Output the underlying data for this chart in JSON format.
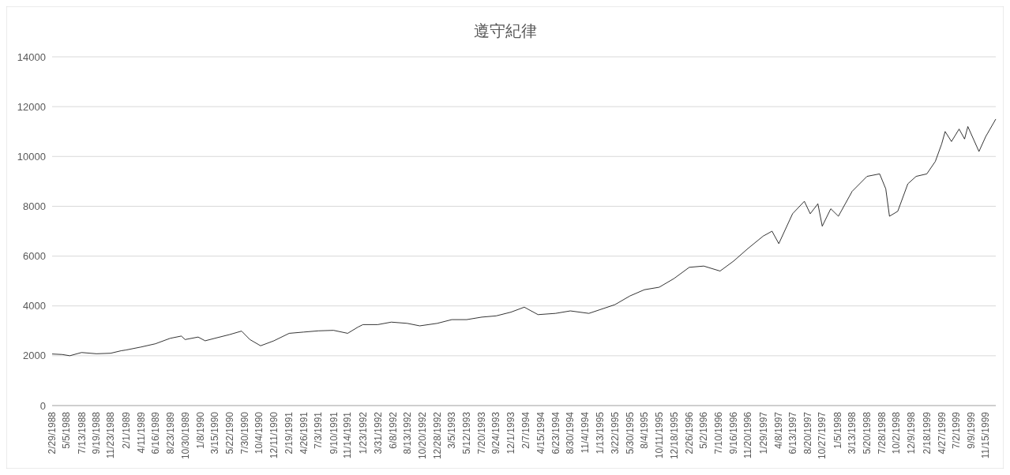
{
  "chart_data": {
    "type": "line",
    "title": "遵守紀律",
    "x": [
      "1988-02-29",
      "1988-04-15",
      "1988-05-20",
      "1988-07-13",
      "1988-09-19",
      "1988-11-23",
      "1989-01-10",
      "1989-02-01",
      "1989-04-11",
      "1989-06-16",
      "1989-08-23",
      "1989-10-13",
      "1989-10-30",
      "1989-12-29",
      "1990-01-30",
      "1990-03-15",
      "1990-05-22",
      "1990-07-16",
      "1990-08-23",
      "1990-10-11",
      "1990-12-11",
      "1991-02-19",
      "1991-04-26",
      "1991-07-03",
      "1991-09-10",
      "1991-11-14",
      "1991-12-31",
      "1992-01-23",
      "1992-03-31",
      "1992-06-01",
      "1992-08-13",
      "1992-10-09",
      "1992-12-28",
      "1993-03-05",
      "1993-05-12",
      "1993-07-20",
      "1993-09-24",
      "1993-12-01",
      "1994-01-31",
      "1994-04-04",
      "1994-06-23",
      "1994-08-30",
      "1994-11-23",
      "1995-01-13",
      "1995-03-22",
      "1995-05-30",
      "1995-08-04",
      "1995-10-11",
      "1995-12-18",
      "1996-02-26",
      "1996-05-02",
      "1996-07-16",
      "1996-09-16",
      "1996-11-20",
      "1997-01-29",
      "1997-03-11",
      "1997-04-11",
      "1997-06-13",
      "1997-08-06",
      "1997-09-02",
      "1997-10-07",
      "1997-10-27",
      "1997-12-05",
      "1998-01-09",
      "1998-03-13",
      "1998-05-20",
      "1998-07-17",
      "1998-08-14",
      "1998-08-31",
      "1998-10-08",
      "1998-11-23",
      "1998-12-31",
      "1999-02-18",
      "1999-03-29",
      "1999-04-27",
      "1999-05-13",
      "1999-06-11",
      "1999-07-16",
      "1999-08-10",
      "1999-08-25",
      "1999-10-15",
      "1999-11-15",
      "1999-12-31"
    ],
    "series": [
      {
        "color": "#000000",
        "values": [
          2070,
          2050,
          2000,
          2130,
          2080,
          2100,
          2200,
          2230,
          2350,
          2480,
          2700,
          2790,
          2650,
          2750,
          2600,
          2700,
          2850,
          2990,
          2650,
          2400,
          2600,
          2900,
          2950,
          3000,
          3020,
          2900,
          3150,
          3250,
          3250,
          3350,
          3300,
          3200,
          3300,
          3450,
          3450,
          3550,
          3600,
          3750,
          3950,
          3650,
          3700,
          3800,
          3700,
          3850,
          4050,
          4400,
          4650,
          4750,
          5100,
          5550,
          5600,
          5400,
          5800,
          6300,
          6800,
          7000,
          6500,
          7700,
          8200,
          7700,
          8100,
          7200,
          7900,
          7600,
          8600,
          9200,
          9300,
          8700,
          7600,
          7800,
          8900,
          9200,
          9300,
          9800,
          10500,
          11000,
          10600,
          11100,
          10700,
          11200,
          10200,
          10800,
          11500
        ]
      }
    ],
    "ylim": [
      0,
      14000
    ],
    "yticks": [
      0,
      2000,
      4000,
      6000,
      8000,
      10000,
      12000,
      14000
    ],
    "grid": "y",
    "xlim": [
      "1988-02-29",
      "1999-12-31"
    ],
    "xticks": [
      {
        "value": "1988-02-29",
        "label": "2/29/1988"
      },
      {
        "value": "1988-05-05",
        "label": "5/5/1988"
      },
      {
        "value": "1988-07-13",
        "label": "7/13/1988"
      },
      {
        "value": "1988-09-19",
        "label": "9/19/1988"
      },
      {
        "value": "1988-11-23",
        "label": "11/23/1988"
      },
      {
        "value": "1989-02-01",
        "label": "2/1/1989"
      },
      {
        "value": "1989-04-11",
        "label": "4/11/1989"
      },
      {
        "value": "1989-06-16",
        "label": "6/16/1989"
      },
      {
        "value": "1989-08-23",
        "label": "8/23/1989"
      },
      {
        "value": "1989-10-30",
        "label": "10/30/1989"
      },
      {
        "value": "1990-01-08",
        "label": "1/8/1990"
      },
      {
        "value": "1990-03-15",
        "label": "3/15/1990"
      },
      {
        "value": "1990-05-22",
        "label": "5/22/1990"
      },
      {
        "value": "1990-07-30",
        "label": "7/30/1990"
      },
      {
        "value": "1990-10-04",
        "label": "10/4/1990"
      },
      {
        "value": "1990-12-11",
        "label": "12/11/1990"
      },
      {
        "value": "1991-02-19",
        "label": "2/19/1991"
      },
      {
        "value": "1991-04-26",
        "label": "4/26/1991"
      },
      {
        "value": "1991-07-03",
        "label": "7/3/1991"
      },
      {
        "value": "1991-09-10",
        "label": "9/10/1991"
      },
      {
        "value": "1991-11-14",
        "label": "11/14/1991"
      },
      {
        "value": "1992-01-23",
        "label": "1/23/1992"
      },
      {
        "value": "1992-03-31",
        "label": "3/31/1992"
      },
      {
        "value": "1992-06-08",
        "label": "6/8/1992"
      },
      {
        "value": "1992-08-13",
        "label": "8/13/1992"
      },
      {
        "value": "1992-10-20",
        "label": "10/20/1992"
      },
      {
        "value": "1992-12-28",
        "label": "12/28/1992"
      },
      {
        "value": "1993-03-05",
        "label": "3/5/1993"
      },
      {
        "value": "1993-05-12",
        "label": "5/12/1993"
      },
      {
        "value": "1993-07-20",
        "label": "7/20/1993"
      },
      {
        "value": "1993-09-24",
        "label": "9/24/1993"
      },
      {
        "value": "1993-12-01",
        "label": "12/1/1993"
      },
      {
        "value": "1994-02-07",
        "label": "2/7/1994"
      },
      {
        "value": "1994-04-15",
        "label": "4/15/1994"
      },
      {
        "value": "1994-06-23",
        "label": "6/23/1994"
      },
      {
        "value": "1994-08-30",
        "label": "8/30/1994"
      },
      {
        "value": "1994-11-04",
        "label": "11/4/1994"
      },
      {
        "value": "1995-01-13",
        "label": "1/13/1995"
      },
      {
        "value": "1995-03-22",
        "label": "3/22/1995"
      },
      {
        "value": "1995-05-30",
        "label": "5/30/1995"
      },
      {
        "value": "1995-08-04",
        "label": "8/4/1995"
      },
      {
        "value": "1995-10-11",
        "label": "10/11/1995"
      },
      {
        "value": "1995-12-18",
        "label": "12/18/1995"
      },
      {
        "value": "1996-02-26",
        "label": "2/26/1996"
      },
      {
        "value": "1996-05-02",
        "label": "5/2/1996"
      },
      {
        "value": "1996-07-10",
        "label": "7/10/1996"
      },
      {
        "value": "1996-09-16",
        "label": "9/16/1996"
      },
      {
        "value": "1996-11-20",
        "label": "11/20/1996"
      },
      {
        "value": "1997-01-29",
        "label": "1/29/1997"
      },
      {
        "value": "1997-04-08",
        "label": "4/8/1997"
      },
      {
        "value": "1997-06-13",
        "label": "6/13/1997"
      },
      {
        "value": "1997-08-20",
        "label": "8/20/1997"
      },
      {
        "value": "1997-10-27",
        "label": "10/27/1997"
      },
      {
        "value": "1998-01-05",
        "label": "1/5/1998"
      },
      {
        "value": "1998-03-13",
        "label": "3/13/1998"
      },
      {
        "value": "1998-05-20",
        "label": "5/20/1998"
      },
      {
        "value": "1998-07-28",
        "label": "7/28/1998"
      },
      {
        "value": "1998-10-02",
        "label": "10/2/1998"
      },
      {
        "value": "1998-12-09",
        "label": "12/9/1998"
      },
      {
        "value": "1999-02-18",
        "label": "2/18/1999"
      },
      {
        "value": "1999-04-27",
        "label": "4/27/1999"
      },
      {
        "value": "1999-07-02",
        "label": "7/2/1999"
      },
      {
        "value": "1999-09-09",
        "label": "9/9/1999"
      },
      {
        "value": "1999-11-15",
        "label": "11/15/1999"
      }
    ]
  }
}
